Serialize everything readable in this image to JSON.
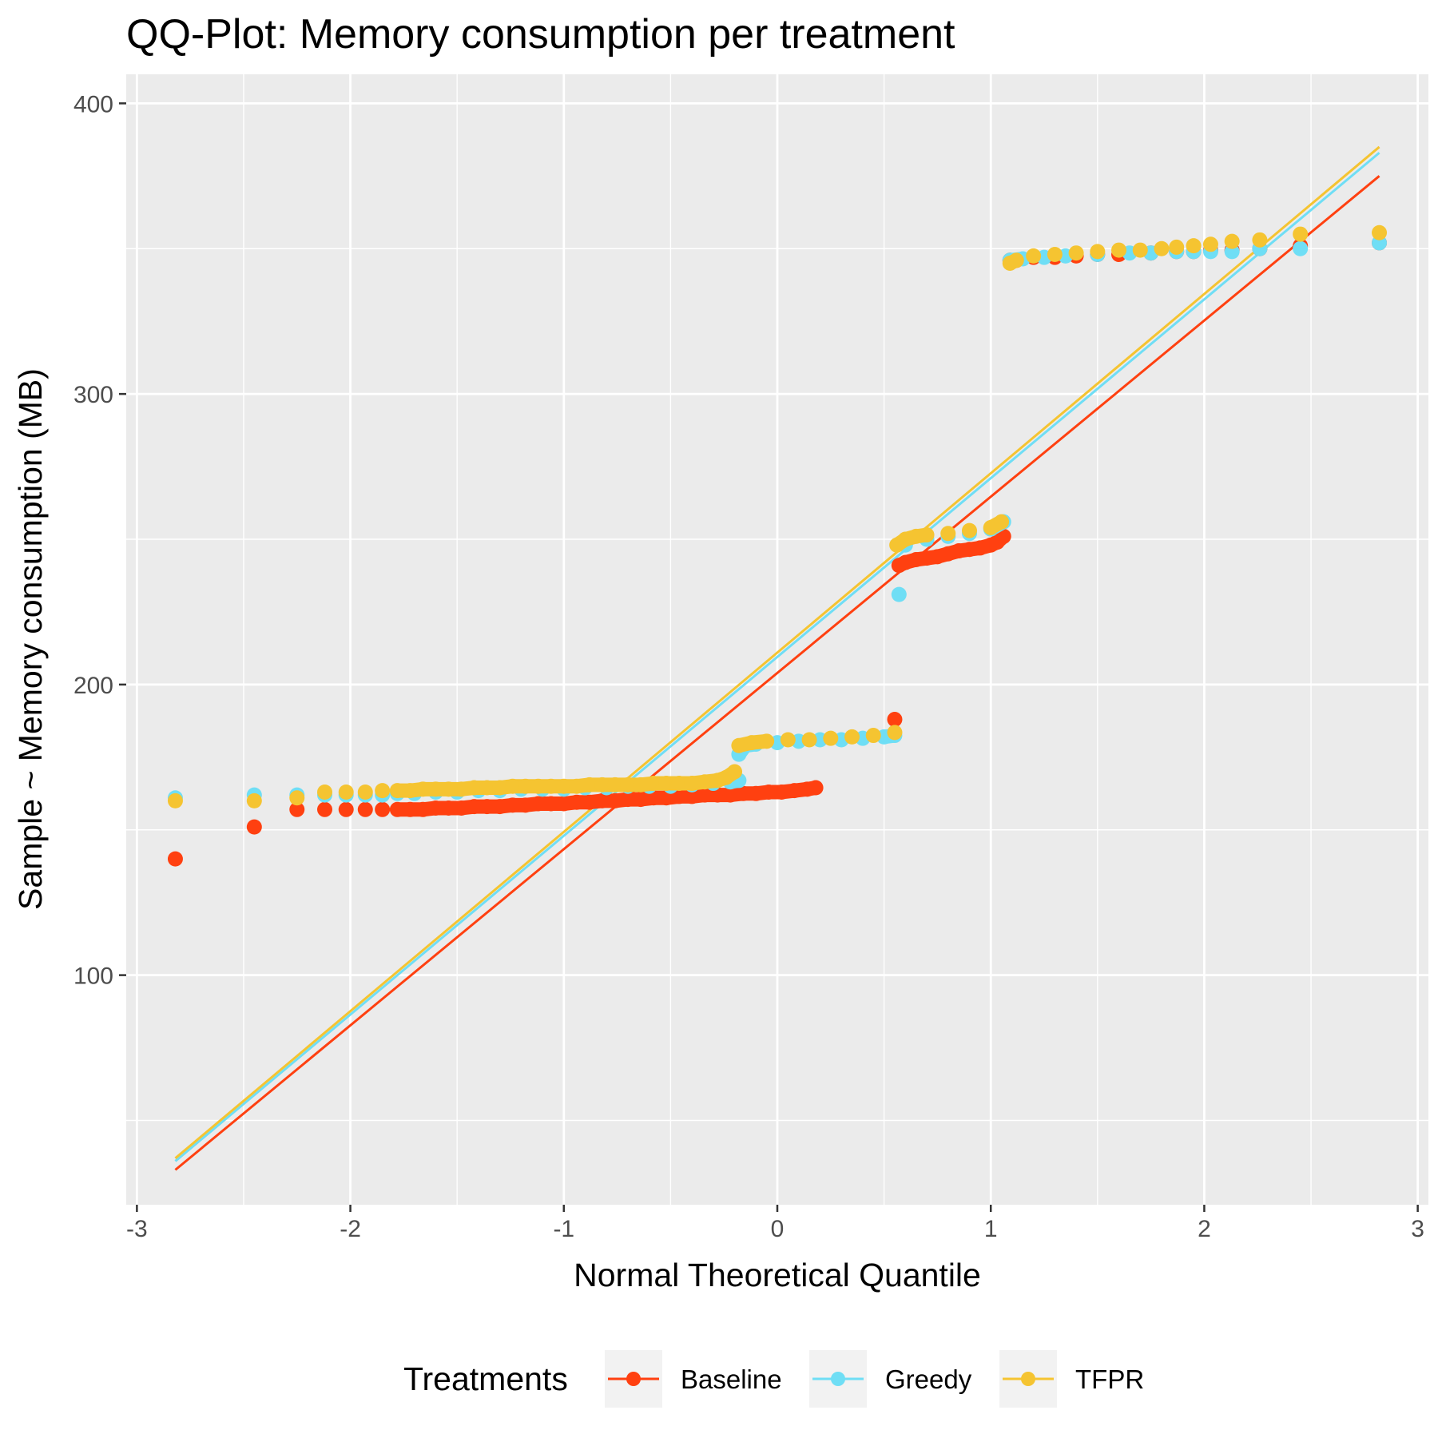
{
  "chart_data": {
    "type": "scatter",
    "title": "QQ-Plot: Memory consumption per treatment",
    "xlabel": "Normal Theoretical Quantile",
    "ylabel": "Sample ~ Memory consumption (MB)",
    "xlim": [
      -3.05,
      3.05
    ],
    "ylim": [
      21,
      410
    ],
    "x_ticks": [
      -3,
      -2,
      -1,
      0,
      1,
      2,
      3
    ],
    "x_tick_labels": [
      "-3",
      "-2",
      "-1",
      "0",
      "1",
      "2",
      "3"
    ],
    "y_ticks": [
      100,
      200,
      300,
      400
    ],
    "y_tick_labels": [
      "100",
      "200",
      "300",
      "400"
    ],
    "grid": true,
    "background": "#EBEBEB",
    "legend": {
      "title": "Treatments",
      "position": "bottom"
    },
    "series": [
      {
        "name": "Baseline",
        "color": "#FF4010",
        "points": [
          [
            -2.82,
            140
          ],
          [
            -2.45,
            151
          ],
          [
            -2.25,
            157
          ],
          [
            -2.12,
            157
          ],
          [
            -2.02,
            157
          ],
          [
            -1.93,
            157
          ],
          [
            -1.85,
            157
          ],
          [
            -1.78,
            157
          ],
          [
            -1.72,
            157
          ],
          [
            -1.66,
            157
          ],
          [
            -1.6,
            157.5
          ],
          [
            -1.54,
            157.5
          ],
          [
            -1.48,
            157.5
          ],
          [
            -1.42,
            158
          ],
          [
            -1.36,
            158
          ],
          [
            -1.3,
            158
          ],
          [
            -1.24,
            158.5
          ],
          [
            -1.18,
            158.5
          ],
          [
            -1.12,
            159
          ],
          [
            -1.06,
            159
          ],
          [
            -1.0,
            159
          ],
          [
            -0.94,
            159.5
          ],
          [
            -0.88,
            159.5
          ],
          [
            -0.82,
            160
          ],
          [
            -0.76,
            160
          ],
          [
            -0.7,
            160.5
          ],
          [
            -0.64,
            160.5
          ],
          [
            -0.58,
            161
          ],
          [
            -0.52,
            161
          ],
          [
            -0.46,
            161.5
          ],
          [
            -0.4,
            161.5
          ],
          [
            -0.34,
            162
          ],
          [
            -0.28,
            162
          ],
          [
            -0.22,
            162
          ],
          [
            -0.16,
            162.5
          ],
          [
            -0.1,
            162.5
          ],
          [
            -0.04,
            163
          ],
          [
            0.02,
            163
          ],
          [
            0.08,
            163.5
          ],
          [
            0.14,
            164
          ],
          [
            0.18,
            164.5
          ],
          [
            0.55,
            188
          ],
          [
            0.57,
            241
          ],
          [
            0.6,
            242
          ],
          [
            0.65,
            243
          ],
          [
            0.7,
            243.5
          ],
          [
            0.75,
            244
          ],
          [
            0.8,
            245
          ],
          [
            0.85,
            246
          ],
          [
            0.9,
            246.5
          ],
          [
            0.95,
            247
          ],
          [
            1.0,
            248
          ],
          [
            1.03,
            249
          ],
          [
            1.06,
            251
          ],
          [
            1.09,
            346
          ],
          [
            1.12,
            346
          ],
          [
            1.2,
            347
          ],
          [
            1.3,
            347
          ],
          [
            1.4,
            347.5
          ],
          [
            1.5,
            348
          ],
          [
            1.6,
            348
          ],
          [
            1.75,
            348.5
          ],
          [
            1.87,
            349
          ],
          [
            1.95,
            349
          ],
          [
            2.03,
            349.5
          ],
          [
            2.13,
            349.5
          ],
          [
            2.26,
            350
          ],
          [
            2.45,
            351
          ],
          [
            2.82,
            352
          ]
        ],
        "line": [
          [
            -2.82,
            33
          ],
          [
            2.82,
            375
          ]
        ]
      },
      {
        "name": "Greedy",
        "color": "#6FDEF5",
        "points": [
          [
            -2.82,
            161
          ],
          [
            -2.45,
            162
          ],
          [
            -2.25,
            162
          ],
          [
            -2.12,
            162
          ],
          [
            -2.02,
            162
          ],
          [
            -1.93,
            162
          ],
          [
            -1.85,
            162
          ],
          [
            -1.78,
            162.5
          ],
          [
            -1.7,
            162.5
          ],
          [
            -1.6,
            163
          ],
          [
            -1.5,
            163
          ],
          [
            -1.4,
            163.5
          ],
          [
            -1.3,
            163.5
          ],
          [
            -1.2,
            164
          ],
          [
            -1.1,
            164
          ],
          [
            -1.0,
            164
          ],
          [
            -0.9,
            164.5
          ],
          [
            -0.8,
            164.5
          ],
          [
            -0.7,
            165
          ],
          [
            -0.6,
            165
          ],
          [
            -0.5,
            165
          ],
          [
            -0.4,
            165.5
          ],
          [
            -0.3,
            166
          ],
          [
            -0.22,
            166.5
          ],
          [
            -0.18,
            167
          ],
          [
            -0.18,
            176
          ],
          [
            -0.15,
            179
          ],
          [
            -0.1,
            179.5
          ],
          [
            0.0,
            180
          ],
          [
            0.1,
            180.5
          ],
          [
            0.2,
            181
          ],
          [
            0.3,
            181
          ],
          [
            0.4,
            181.5
          ],
          [
            0.5,
            182
          ],
          [
            0.55,
            182.5
          ],
          [
            0.57,
            231
          ],
          [
            0.6,
            248
          ],
          [
            0.7,
            250
          ],
          [
            0.8,
            251
          ],
          [
            0.9,
            252
          ],
          [
            1.0,
            253.5
          ],
          [
            1.06,
            256
          ],
          [
            1.09,
            346
          ],
          [
            1.15,
            346.5
          ],
          [
            1.25,
            347
          ],
          [
            1.35,
            347.5
          ],
          [
            1.5,
            348
          ],
          [
            1.65,
            348.5
          ],
          [
            1.75,
            348.5
          ],
          [
            1.87,
            349
          ],
          [
            1.95,
            349
          ],
          [
            2.03,
            349
          ],
          [
            2.13,
            349
          ],
          [
            2.26,
            350
          ],
          [
            2.45,
            350
          ],
          [
            2.82,
            352
          ]
        ],
        "line": [
          [
            -2.82,
            36
          ],
          [
            2.82,
            383
          ]
        ]
      },
      {
        "name": "TFPR",
        "color": "#F5C431",
        "points": [
          [
            -2.82,
            160
          ],
          [
            -2.45,
            160
          ],
          [
            -2.25,
            161
          ],
          [
            -2.12,
            163
          ],
          [
            -2.02,
            163
          ],
          [
            -1.93,
            163
          ],
          [
            -1.85,
            163.5
          ],
          [
            -1.78,
            163.5
          ],
          [
            -1.72,
            163.5
          ],
          [
            -1.66,
            164
          ],
          [
            -1.6,
            164
          ],
          [
            -1.54,
            164
          ],
          [
            -1.48,
            164
          ],
          [
            -1.42,
            164.5
          ],
          [
            -1.36,
            164.5
          ],
          [
            -1.3,
            164.5
          ],
          [
            -1.24,
            165
          ],
          [
            -1.18,
            165
          ],
          [
            -1.12,
            165
          ],
          [
            -1.06,
            165
          ],
          [
            -1.0,
            165
          ],
          [
            -0.94,
            165
          ],
          [
            -0.88,
            165.5
          ],
          [
            -0.82,
            165.5
          ],
          [
            -0.76,
            165.5
          ],
          [
            -0.7,
            165.5
          ],
          [
            -0.64,
            165.5
          ],
          [
            -0.58,
            166
          ],
          [
            -0.52,
            166
          ],
          [
            -0.46,
            166
          ],
          [
            -0.4,
            166
          ],
          [
            -0.34,
            166.5
          ],
          [
            -0.28,
            167
          ],
          [
            -0.24,
            168
          ],
          [
            -0.2,
            170
          ],
          [
            -0.18,
            179
          ],
          [
            -0.12,
            180
          ],
          [
            -0.05,
            180.5
          ],
          [
            0.05,
            181
          ],
          [
            0.15,
            181
          ],
          [
            0.25,
            181.5
          ],
          [
            0.35,
            182
          ],
          [
            0.45,
            182.5
          ],
          [
            0.55,
            183.5
          ],
          [
            0.56,
            248
          ],
          [
            0.6,
            250
          ],
          [
            0.65,
            251
          ],
          [
            0.7,
            251.5
          ],
          [
            0.8,
            252
          ],
          [
            0.9,
            253
          ],
          [
            1.0,
            254
          ],
          [
            1.05,
            256
          ],
          [
            1.09,
            345
          ],
          [
            1.12,
            346
          ],
          [
            1.2,
            347.5
          ],
          [
            1.3,
            348
          ],
          [
            1.4,
            348.5
          ],
          [
            1.5,
            349
          ],
          [
            1.6,
            349.5
          ],
          [
            1.7,
            349.5
          ],
          [
            1.8,
            350
          ],
          [
            1.87,
            350.5
          ],
          [
            1.95,
            351
          ],
          [
            2.03,
            351.5
          ],
          [
            2.13,
            352.5
          ],
          [
            2.26,
            353
          ],
          [
            2.45,
            355
          ],
          [
            2.82,
            355.5
          ]
        ],
        "line": [
          [
            -2.82,
            37
          ],
          [
            2.82,
            385
          ]
        ]
      }
    ]
  }
}
